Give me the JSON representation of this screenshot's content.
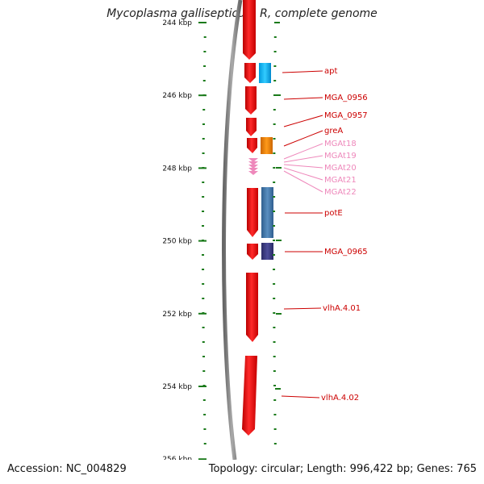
{
  "title": "Mycoplasma gallisepticum R, complete genome",
  "footer": {
    "accession": "Accession: NC_004829",
    "summary": "Topology: circular; Length: 996,422 bp; Genes: 765"
  },
  "colors": {
    "gene_red": "#ee1111",
    "label_red": "#cc0000",
    "trna_pink": "#ee88bb",
    "tick_green": "#1a7a1a",
    "backbone_gray": "#888888"
  },
  "ticks": [
    {
      "label": "244 kbp"
    },
    {
      "label": "246 kbp"
    },
    {
      "label": "248 kbp"
    },
    {
      "label": "250 kbp"
    },
    {
      "label": "252 kbp"
    },
    {
      "label": "254 kbp"
    },
    {
      "label": "256 kbp"
    }
  ],
  "gene_labels": [
    {
      "text": "apt",
      "type": "gene"
    },
    {
      "text": "MGA_0956",
      "type": "gene"
    },
    {
      "text": "MGA_0957",
      "type": "gene"
    },
    {
      "text": "greA",
      "type": "gene"
    },
    {
      "text": "MGAt18",
      "type": "trna"
    },
    {
      "text": "MGAt19",
      "type": "trna"
    },
    {
      "text": "MGAt20",
      "type": "trna"
    },
    {
      "text": "MGAt21",
      "type": "trna"
    },
    {
      "text": "MGAt22",
      "type": "trna"
    },
    {
      "text": "potE",
      "type": "gene"
    },
    {
      "text": "MGA_0965",
      "type": "gene"
    },
    {
      "text": "vlhA.4.01",
      "type": "gene"
    },
    {
      "text": "vlhA.4.02",
      "type": "gene"
    }
  ]
}
